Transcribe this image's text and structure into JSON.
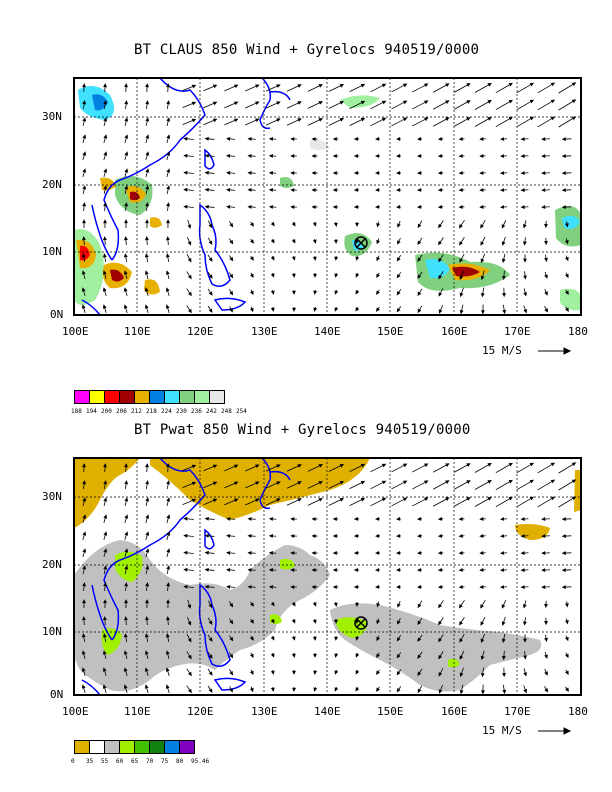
{
  "panels": [
    {
      "id": "claus",
      "title": "BT CLAUS 850 Wind + Gyrelocs 940519/0000",
      "lon_labels": [
        "100E",
        "110E",
        "120E",
        "130E",
        "140E",
        "150E",
        "160E",
        "170E",
        "180"
      ],
      "lat_labels": [
        "0N",
        "10N",
        "20N",
        "30N"
      ],
      "wind_ref_label": "15 M/S",
      "colorbar": {
        "labels": [
          "188",
          "194",
          "200",
          "206",
          "212",
          "218",
          "224",
          "230",
          "236",
          "242",
          "248",
          "254"
        ],
        "colors": [
          "#ff00ff",
          "#ffff00",
          "#ff0000",
          "#a00000",
          "#e8b000",
          "#0080e0",
          "#40e0ff",
          "#80d080",
          "#a0f0a0",
          "#e8e8e8"
        ]
      }
    },
    {
      "id": "pwat",
      "title": "BT Pwat 850 Wind + Gyrelocs 940519/0000",
      "lon_labels": [
        "100E",
        "110E",
        "120E",
        "130E",
        "140E",
        "150E",
        "160E",
        "170E",
        "180"
      ],
      "lat_labels": [
        "0N",
        "10N",
        "20N",
        "30N"
      ],
      "wind_ref_label": "15 M/S",
      "colorbar": {
        "labels": [
          "0",
          "35",
          "55",
          "60",
          "65",
          "70",
          "75",
          "80",
          "95.46"
        ],
        "colors": [
          "#e0b000",
          "#ffffff",
          "#c0c0c0",
          "#a0f000",
          "#40c000",
          "#108010",
          "#0080e0",
          "#8000c0"
        ]
      }
    }
  ],
  "gyre_marker": {
    "lon": 145,
    "lat": 11
  }
}
